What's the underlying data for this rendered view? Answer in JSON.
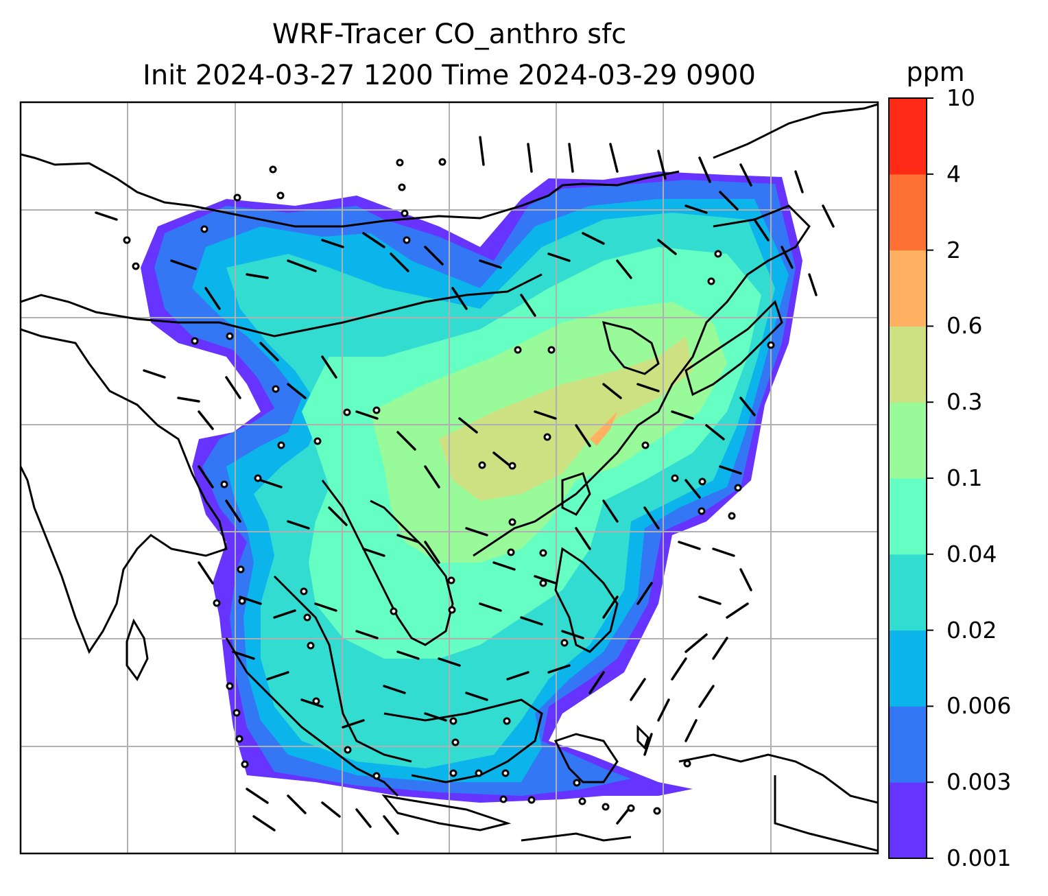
{
  "chart_data": {
    "type": "heatmap",
    "title": "WRF-Tracer CO_anthro sfc",
    "subtitle": "Init 2024-03-27 1200 Time 2024-03-29 0900",
    "colorbar": {
      "unit": "ppm",
      "levels": [
        "0.001",
        "0.003",
        "0.006",
        "0.02",
        "0.04",
        "0.1",
        "0.3",
        "0.6",
        "2",
        "4",
        "10"
      ],
      "colors": [
        "#6633ff",
        "#3377f5",
        "#0bb4ea",
        "#33dcd0",
        "#66ffc3",
        "#99fa9a",
        "#cde082",
        "#ffb060",
        "#ff7035",
        "#ff2a15"
      ]
    },
    "grid": true,
    "overlays": [
      "coastlines",
      "country borders",
      "wind barbs"
    ]
  }
}
